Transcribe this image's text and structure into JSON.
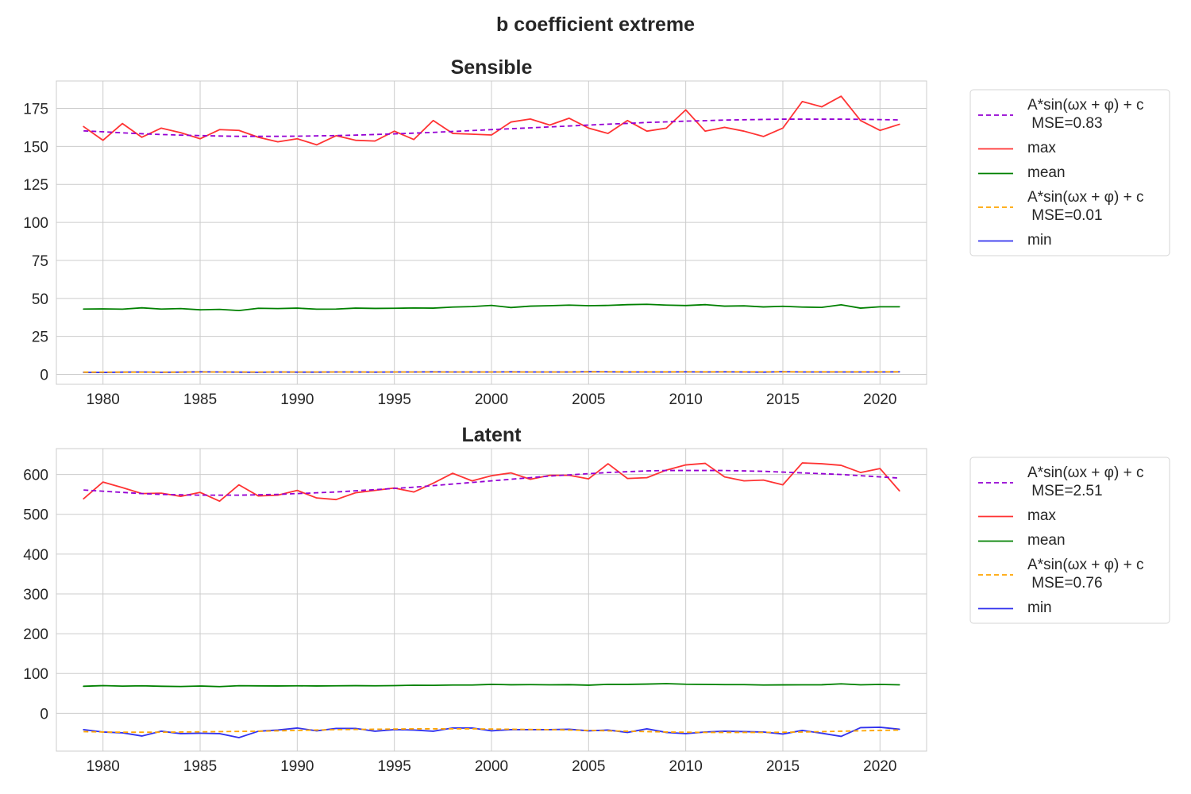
{
  "figure": {
    "suptitle": "b coefficient extreme"
  },
  "colors": {
    "max": "#ff3333",
    "mean": "#008000",
    "min": "#3333ee",
    "fit_max": "#9400d3",
    "fit_min": "#ffa500",
    "grid": "#cccccc",
    "frame": "#cccccc"
  },
  "chart_data": [
    {
      "type": "line",
      "title": "Sensible",
      "xlabel": "",
      "ylabel": "",
      "xlim": [
        1977.6,
        2022.4
      ],
      "ylim": [
        -6.5,
        193
      ],
      "xticks": [
        1980,
        1985,
        1990,
        1995,
        2000,
        2005,
        2010,
        2015,
        2020
      ],
      "yticks": [
        0,
        25,
        50,
        75,
        100,
        125,
        150,
        175
      ],
      "grid": true,
      "legend_position": "outside-right",
      "x": [
        1979,
        1980,
        1981,
        1982,
        1983,
        1984,
        1985,
        1986,
        1987,
        1988,
        1989,
        1990,
        1991,
        1992,
        1993,
        1994,
        1995,
        1996,
        1997,
        1998,
        1999,
        2000,
        2001,
        2002,
        2003,
        2004,
        2005,
        2006,
        2007,
        2008,
        2009,
        2010,
        2011,
        2012,
        2013,
        2014,
        2015,
        2016,
        2017,
        2018,
        2019,
        2020,
        2021
      ],
      "series": [
        {
          "key": "fit_max",
          "name": "A*sin(ωx + φ) + c\n MSE=0.83",
          "style": "dashed",
          "values": [
            160.2,
            159.6,
            158.9,
            158.3,
            157.8,
            157.4,
            157.1,
            156.8,
            156.6,
            156.6,
            156.6,
            156.7,
            156.9,
            157.1,
            157.4,
            157.8,
            158.2,
            158.7,
            159.2,
            159.8,
            160.4,
            161.0,
            161.6,
            162.2,
            162.8,
            163.4,
            164.0,
            164.6,
            165.1,
            165.7,
            166.1,
            166.6,
            166.9,
            167.3,
            167.5,
            167.7,
            167.9,
            167.9,
            167.9,
            167.9,
            167.8,
            167.6,
            167.4
          ]
        },
        {
          "key": "max",
          "name": "max",
          "style": "solid",
          "values": [
            163,
            154,
            165,
            156,
            162,
            159,
            155,
            161,
            160.5,
            156,
            153,
            155,
            151,
            157,
            154,
            153.5,
            160,
            154.5,
            167,
            158.5,
            158,
            157.5,
            166,
            168,
            164,
            168.5,
            162,
            158.5,
            167,
            160,
            162,
            174,
            160,
            162.5,
            160,
            156.5,
            162,
            179.5,
            176,
            183,
            167,
            160.5,
            164.5
          ]
        },
        {
          "key": "mean",
          "name": "mean",
          "style": "solid",
          "values": [
            43,
            43.1,
            42.9,
            43.8,
            43,
            43.3,
            42.5,
            42.8,
            42,
            43.5,
            43.3,
            43.6,
            42.9,
            43,
            43.6,
            43.4,
            43.5,
            43.7,
            43.6,
            44.3,
            44.6,
            45.4,
            44,
            44.9,
            45.2,
            45.6,
            45.2,
            45.4,
            45.9,
            46.1,
            45.6,
            45.3,
            45.9,
            44.9,
            45.1,
            44.4,
            44.8,
            44.3,
            44.1,
            45.8,
            43.6,
            44.5,
            44.5
          ]
        },
        {
          "key": "fit_min",
          "name": "A*sin(ωx + φ) + c\n MSE=0.01",
          "style": "dashed",
          "values": [
            1.5,
            1.5,
            1.5,
            1.5,
            1.5,
            1.5,
            1.6,
            1.6,
            1.6,
            1.6,
            1.6,
            1.6,
            1.6,
            1.6,
            1.6,
            1.6,
            1.6,
            1.6,
            1.6,
            1.6,
            1.6,
            1.6,
            1.6,
            1.6,
            1.6,
            1.6,
            1.7,
            1.7,
            1.7,
            1.7,
            1.7,
            1.7,
            1.7,
            1.7,
            1.7,
            1.7,
            1.7,
            1.7,
            1.7,
            1.7,
            1.7,
            1.7,
            1.7
          ]
        },
        {
          "key": "min",
          "name": "min",
          "style": "solid",
          "values": [
            1.4,
            1.3,
            1.5,
            1.6,
            1.4,
            1.5,
            1.7,
            1.6,
            1.5,
            1.4,
            1.6,
            1.5,
            1.5,
            1.6,
            1.6,
            1.5,
            1.6,
            1.6,
            1.7,
            1.6,
            1.6,
            1.6,
            1.7,
            1.6,
            1.6,
            1.6,
            1.8,
            1.7,
            1.6,
            1.6,
            1.6,
            1.7,
            1.6,
            1.7,
            1.6,
            1.5,
            1.8,
            1.6,
            1.6,
            1.6,
            1.6,
            1.6,
            1.7
          ]
        }
      ]
    },
    {
      "type": "line",
      "title": "Latent",
      "xlabel": "",
      "ylabel": "",
      "xlim": [
        1977.6,
        2022.4
      ],
      "ylim": [
        -95,
        665
      ],
      "xticks": [
        1980,
        1985,
        1990,
        1995,
        2000,
        2005,
        2010,
        2015,
        2020
      ],
      "yticks": [
        0,
        100,
        200,
        300,
        400,
        500,
        600
      ],
      "grid": true,
      "legend_position": "outside-right",
      "x": [
        1979,
        1980,
        1981,
        1982,
        1983,
        1984,
        1985,
        1986,
        1987,
        1988,
        1989,
        1990,
        1991,
        1992,
        1993,
        1994,
        1995,
        1996,
        1997,
        1998,
        1999,
        2000,
        2001,
        2002,
        2003,
        2004,
        2005,
        2006,
        2007,
        2008,
        2009,
        2010,
        2011,
        2012,
        2013,
        2014,
        2015,
        2016,
        2017,
        2018,
        2019,
        2020,
        2021
      ],
      "series": [
        {
          "key": "fit_max",
          "name": "A*sin(ωx + φ) + c\n MSE=2.51",
          "style": "dashed",
          "values": [
            561,
            558,
            555,
            552,
            550,
            549,
            548,
            548,
            548,
            549,
            550,
            552,
            554,
            556,
            559,
            562,
            565,
            568,
            572,
            576,
            580,
            584,
            588,
            592,
            596,
            599,
            602,
            605,
            607,
            609,
            610,
            610,
            610,
            610,
            609,
            608,
            606,
            604,
            602,
            600,
            597,
            594,
            591
          ]
        },
        {
          "key": "max",
          "name": "max",
          "style": "solid",
          "values": [
            539,
            581,
            567,
            552,
            553,
            545,
            555,
            533,
            574,
            546,
            548,
            560,
            541,
            537,
            554,
            560,
            566,
            556,
            578,
            603,
            584,
            597,
            604,
            588,
            598,
            598,
            589,
            627,
            590,
            592,
            611,
            624,
            628,
            594,
            584,
            586,
            574,
            629,
            627,
            623,
            605,
            615,
            559
          ]
        },
        {
          "key": "mean",
          "name": "mean",
          "style": "solid",
          "values": [
            68,
            69.5,
            68.4,
            69,
            68,
            67.3,
            68.6,
            67.1,
            69.3,
            68.9,
            68.7,
            69.1,
            68.7,
            69.1,
            69.4,
            69,
            69.6,
            70.6,
            70.3,
            71,
            71,
            72.7,
            71.7,
            72,
            71.6,
            71.9,
            70.7,
            72.8,
            72.7,
            73.4,
            74.5,
            73,
            72.6,
            72,
            72.1,
            71,
            71.4,
            71.6,
            71.7,
            74,
            71.5,
            72.6,
            71.6
          ]
        },
        {
          "key": "fit_min",
          "name": "A*sin(ωx + φ) + c\n MSE=0.76",
          "style": "dashed",
          "values": [
            -46,
            -47,
            -47.5,
            -47.5,
            -47.5,
            -47,
            -46.5,
            -46,
            -45.5,
            -45,
            -44,
            -43,
            -42,
            -41,
            -40.5,
            -40,
            -39.5,
            -39,
            -39,
            -39,
            -39,
            -39.5,
            -40,
            -40.5,
            -41,
            -42,
            -43,
            -44,
            -45,
            -46,
            -47,
            -47.5,
            -48,
            -48,
            -48,
            -48,
            -47.5,
            -47,
            -46,
            -45,
            -44,
            -43,
            -42
          ]
        },
        {
          "key": "min",
          "name": "min",
          "style": "solid",
          "values": [
            -41,
            -47,
            -49,
            -57,
            -45,
            -51,
            -50,
            -51,
            -61,
            -45,
            -42,
            -37,
            -44,
            -38,
            -38,
            -45,
            -41,
            -42,
            -45,
            -37,
            -37,
            -44,
            -41,
            -41,
            -41,
            -40,
            -44,
            -42,
            -48,
            -39,
            -48,
            -51,
            -47,
            -45,
            -46,
            -47,
            -52,
            -43,
            -50,
            -58,
            -36,
            -35,
            -40
          ]
        }
      ]
    }
  ]
}
